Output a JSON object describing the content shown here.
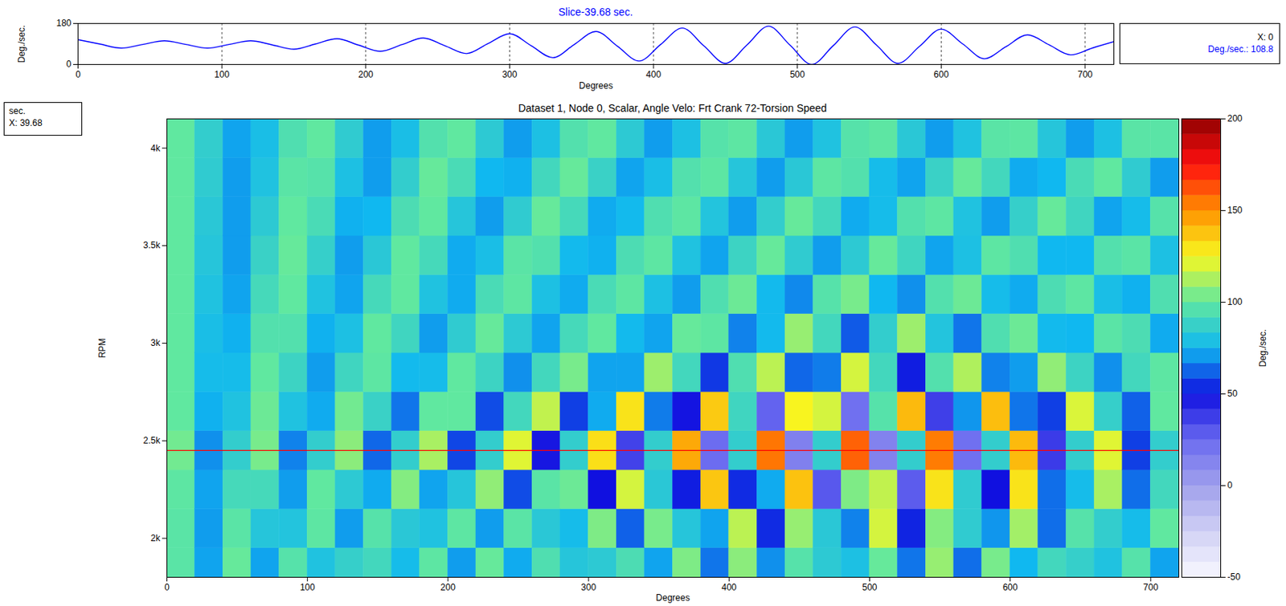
{
  "chart_data": [
    {
      "type": "line",
      "title": "Slice-39.68 sec.",
      "x_label": "Degrees",
      "y_label": "Deg./sec.",
      "x": [
        0,
        15,
        30,
        45,
        60,
        75,
        90,
        105,
        120,
        135,
        150,
        165,
        180,
        195,
        210,
        225,
        240,
        255,
        270,
        285,
        300,
        315,
        330,
        345,
        360,
        375,
        390,
        405,
        420,
        435,
        450,
        465,
        480,
        495,
        510,
        525,
        540,
        555,
        570,
        585,
        600,
        615,
        630,
        645,
        660,
        675,
        690,
        705,
        720
      ],
      "values": [
        108.8,
        90,
        72,
        88,
        104,
        88,
        72,
        88,
        104,
        86,
        67,
        90,
        113,
        85,
        58,
        87,
        116,
        82,
        48,
        92,
        135,
        82,
        30,
        88,
        145,
        80,
        15,
        88,
        160,
        82,
        5,
        86,
        168,
        84,
        0,
        83,
        165,
        85,
        5,
        80,
        155,
        90,
        25,
        78,
        130,
        86,
        42,
        72,
        100
      ],
      "color": "#0000ff",
      "xlim": [
        0,
        720
      ],
      "ylim": [
        0,
        180
      ],
      "xticks": [
        0,
        100,
        200,
        300,
        400,
        500,
        600,
        700
      ],
      "yticks": [
        0,
        180
      ],
      "grid": true,
      "annotations": [
        "X: 0",
        "Deg./sec.: 108.8"
      ]
    },
    {
      "type": "heatmap",
      "title": "Dataset 1, Node 0, Scalar, Angle Velo: Frt Crank 72-Torsion Speed",
      "x_label": "Degrees",
      "y_label": "RPM",
      "x": [
        10,
        30,
        50,
        70,
        90,
        110,
        130,
        150,
        170,
        190,
        210,
        230,
        250,
        270,
        290,
        310,
        330,
        350,
        370,
        390,
        410,
        430,
        450,
        470,
        490,
        510,
        530,
        550,
        570,
        590,
        610,
        630,
        650,
        670,
        690,
        710
      ],
      "y": [
        1850,
        2050,
        2250,
        2450,
        2650,
        2850,
        3050,
        3250,
        3450,
        3650,
        3850,
        4050
      ],
      "values": [
        [
          98,
          72,
          101,
          72,
          97,
          80,
          87,
          91,
          77,
          99,
          71,
          101,
          73,
          95,
          82,
          84,
          94,
          72,
          105,
          65,
          107,
          69,
          97,
          84,
          79,
          101,
          65,
          109,
          64,
          104,
          75,
          91,
          87,
          80,
          97,
          72
        ],
        [
          98,
          71,
          98,
          82,
          81,
          99,
          71,
          97,
          83,
          80,
          99,
          71,
          98,
          83,
          77,
          105,
          62,
          104,
          82,
          72,
          115,
          54,
          109,
          83,
          67,
          119,
          53,
          106,
          85,
          70,
          111,
          64,
          97,
          86,
          77,
          100
        ],
        [
          99,
          72,
          92,
          92,
          71,
          100,
          84,
          73,
          106,
          72,
          82,
          108,
          59,
          98,
          102,
          50,
          119,
          83,
          52,
          137,
          54,
          73,
          138,
          30,
          105,
          116,
          29,
          130,
          85,
          50,
          130,
          64,
          77,
          112,
          64,
          91
        ],
        [
          103,
          69,
          86,
          104,
          67,
          86,
          107,
          63,
          86,
          112,
          58,
          86,
          121,
          48,
          86,
          131,
          36,
          86,
          144,
          24,
          86,
          155,
          15,
          86,
          159,
          14,
          86,
          154,
          22,
          86,
          140,
          38,
          86,
          121,
          57,
          86
        ],
        [
          100,
          74,
          80,
          102,
          80,
          73,
          103,
          88,
          65,
          100,
          100,
          59,
          91,
          116,
          57,
          73,
          130,
          66,
          49,
          136,
          90,
          27,
          126,
          119,
          22,
          97,
          140,
          37,
          70,
          139,
          65,
          57,
          120,
          87,
          62,
          100
        ],
        [
          100,
          77,
          77,
          100,
          89,
          71,
          90,
          99,
          76,
          77,
          100,
          89,
          69,
          91,
          104,
          72,
          72,
          110,
          91,
          56,
          95,
          115,
          63,
          66,
          119,
          91,
          52,
          96,
          113,
          67,
          71,
          108,
          89,
          69,
          91,
          99
        ],
        [
          100,
          78,
          74,
          96,
          96,
          74,
          79,
          100,
          90,
          71,
          85,
          101,
          84,
          72,
          92,
          100,
          76,
          72,
          101,
          99,
          67,
          76,
          109,
          91,
          61,
          86,
          110,
          81,
          65,
          95,
          102,
          76,
          75,
          98,
          94,
          73
        ],
        [
          100,
          80,
          72,
          92,
          100,
          80,
          72,
          92,
          100,
          80,
          73,
          93,
          99,
          79,
          73,
          93,
          99,
          79,
          71,
          95,
          102,
          76,
          68,
          97,
          104,
          75,
          69,
          96,
          102,
          77,
          73,
          94,
          99,
          78,
          74,
          95
        ],
        [
          100,
          82,
          71,
          88,
          101,
          87,
          71,
          83,
          100,
          92,
          73,
          78,
          98,
          96,
          76,
          74,
          94,
          99,
          80,
          72,
          89,
          101,
          85,
          71,
          84,
          101,
          90,
          72,
          79,
          99,
          95,
          75,
          75,
          96,
          98,
          79
        ],
        [
          100,
          83,
          71,
          84,
          100,
          93,
          74,
          75,
          94,
          100,
          82,
          71,
          85,
          101,
          92,
          73,
          76,
          95,
          99,
          81,
          71,
          86,
          101,
          91,
          73,
          77,
          96,
          99,
          80,
          71,
          87,
          101,
          90,
          72,
          77,
          97
        ],
        [
          100,
          85,
          71,
          80,
          98,
          97,
          79,
          71,
          86,
          101,
          93,
          75,
          74,
          91,
          101,
          88,
          72,
          78,
          96,
          99,
          82,
          71,
          83,
          99,
          96,
          77,
          72,
          88,
          101,
          91,
          73,
          75,
          93,
          100,
          85,
          71
        ],
        [
          100,
          86,
          72,
          78,
          95,
          100,
          85,
          71,
          78,
          96,
          100,
          84,
          71,
          79,
          96,
          100,
          84,
          71,
          79,
          97,
          99,
          83,
          71,
          80,
          97,
          99,
          83,
          71,
          80,
          98,
          99,
          82,
          71,
          79,
          98,
          98
        ]
      ],
      "xlim": [
        0,
        720
      ],
      "ylim": [
        1800,
        4150
      ],
      "xticks": [
        0,
        100,
        200,
        300,
        400,
        500,
        600,
        700
      ],
      "yticks": [
        {
          "value": 2000,
          "label": "2k"
        },
        {
          "value": 2500,
          "label": "2.5k"
        },
        {
          "value": 3000,
          "label": "3k"
        },
        {
          "value": 3500,
          "label": "3.5k"
        },
        {
          "value": 4000,
          "label": "4k"
        }
      ],
      "colorbar": {
        "label": "Deg./sec.",
        "range": [
          -50,
          200
        ],
        "ticks": [
          -50,
          0,
          50,
          100,
          150,
          200
        ],
        "colors": [
          "#f8f8ff",
          "#d0d0f4",
          "#a0a0ec",
          "#6a6af0",
          "#1010e0",
          "#10b8f0",
          "#60e8a0",
          "#f8f820",
          "#ff9000",
          "#ff1010",
          "#900000"
        ]
      },
      "cursor": {
        "value": 2450,
        "color": "#ff0000"
      },
      "annotations": [
        "sec.",
        "X: 39.68"
      ]
    }
  ]
}
